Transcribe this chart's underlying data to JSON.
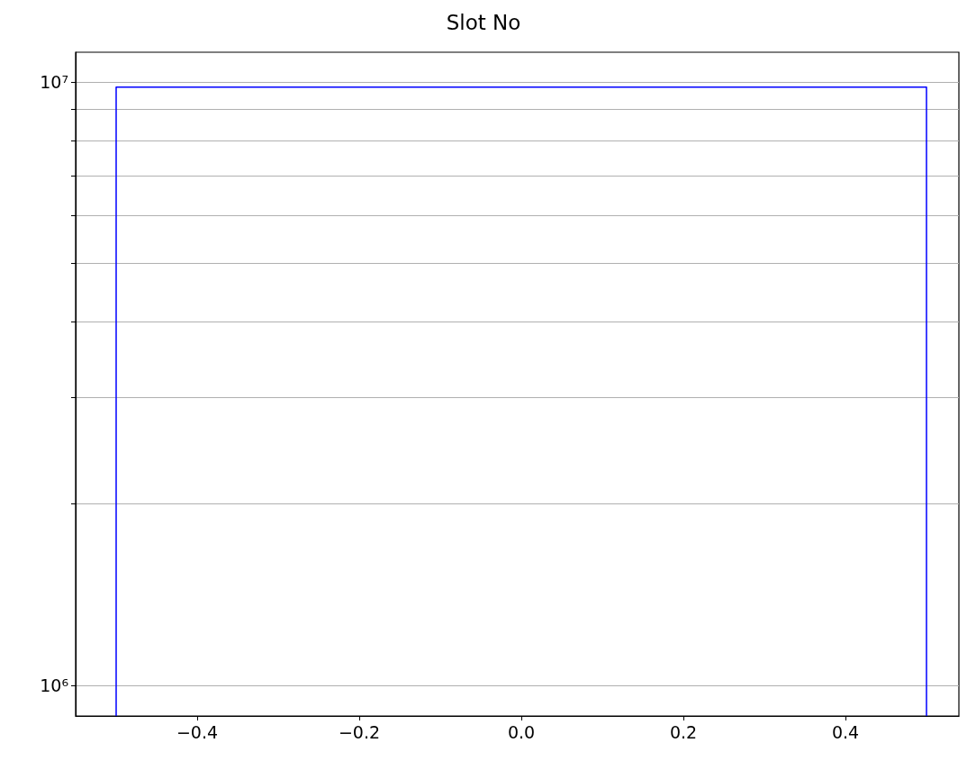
{
  "chart_data": {
    "type": "histogram",
    "title": "Slot No",
    "bins": [
      -0.5,
      0.5
    ],
    "values": [
      9800000
    ],
    "color": "#0000ff",
    "xlim": [
      -0.55,
      0.54
    ],
    "xticks": [
      {
        "value": -0.4,
        "label": "−0.4"
      },
      {
        "value": -0.2,
        "label": "−0.2"
      },
      {
        "value": 0,
        "label": "0.0"
      },
      {
        "value": 0.2,
        "label": "0.2"
      },
      {
        "value": 0.4,
        "label": "0.4"
      }
    ],
    "ylim": [
      890000,
      11200000
    ],
    "log": "y",
    "yticks": [
      {
        "value": 1000000,
        "label": "10⁶"
      },
      {
        "value": 2000000,
        "label": null
      },
      {
        "value": 3000000,
        "label": null
      },
      {
        "value": 4000000,
        "label": null
      },
      {
        "value": 5000000,
        "label": null
      },
      {
        "value": 6000000,
        "label": null
      },
      {
        "value": 7000000,
        "label": null
      },
      {
        "value": 8000000,
        "label": null
      },
      {
        "value": 9000000,
        "label": null
      },
      {
        "value": 10000000,
        "label": "10⁷"
      }
    ],
    "grid": "y"
  }
}
